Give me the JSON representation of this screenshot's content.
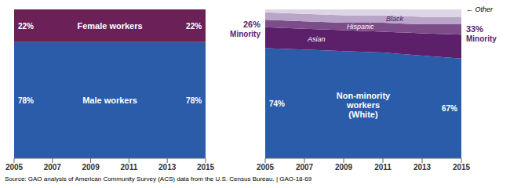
{
  "source": "Source: GAO analysis of American Community Survey (ACS) data from the U.S. Census Bureau.  |  GAO-18-69",
  "chart_data": [
    {
      "type": "area",
      "stacked": true,
      "tick_labels": "x",
      "x": [
        2005,
        2007,
        2009,
        2011,
        2013,
        2015
      ],
      "xlim": [
        2005,
        2015
      ],
      "xticks": [
        2005,
        2007,
        2009,
        2011,
        2013,
        2015
      ],
      "ylim": [
        0,
        100
      ],
      "series": [
        {
          "name": "Male workers",
          "color": "#2b5caa",
          "values": [
            78,
            78,
            78,
            78,
            78,
            78
          ],
          "start_label": "78%",
          "end_label": "78%"
        },
        {
          "name": "Female workers",
          "color": "#6b2157",
          "values": [
            22,
            22,
            22,
            22,
            22,
            22
          ],
          "start_label": "22%",
          "end_label": "22%"
        }
      ]
    },
    {
      "type": "area",
      "stacked": true,
      "tick_labels": "x",
      "x": [
        2005,
        2007,
        2009,
        2011,
        2013,
        2015
      ],
      "xlim": [
        2005,
        2015
      ],
      "xticks": [
        2005,
        2007,
        2009,
        2011,
        2013,
        2015
      ],
      "ylim": [
        0,
        100
      ],
      "series": [
        {
          "name": "Non-minority\nworkers\n(White)",
          "color": "#2b5caa",
          "values": [
            74,
            73,
            72,
            71,
            69,
            67
          ],
          "start_label": "74%",
          "end_label": "67%"
        },
        {
          "name": "Asian",
          "color": "#5c1f6a",
          "values": [
            14,
            14,
            14,
            14,
            15,
            16
          ]
        },
        {
          "name": "Hispanic",
          "color": "#7d4d8a",
          "values": [
            5,
            5,
            5,
            6,
            6,
            7
          ]
        },
        {
          "name": "Black",
          "color": "#b8a5c8",
          "values": [
            5,
            5,
            5,
            5,
            5,
            5
          ]
        },
        {
          "name": "Other",
          "color": "#ddd5e5",
          "values": [
            2,
            3,
            4,
            4,
            5,
            5
          ],
          "arrow": "←"
        }
      ],
      "annotations": [
        {
          "value": 26,
          "label": "26%",
          "text": "Minority"
        },
        {
          "value": 33,
          "label": "33%",
          "text": "Minority"
        }
      ]
    }
  ]
}
